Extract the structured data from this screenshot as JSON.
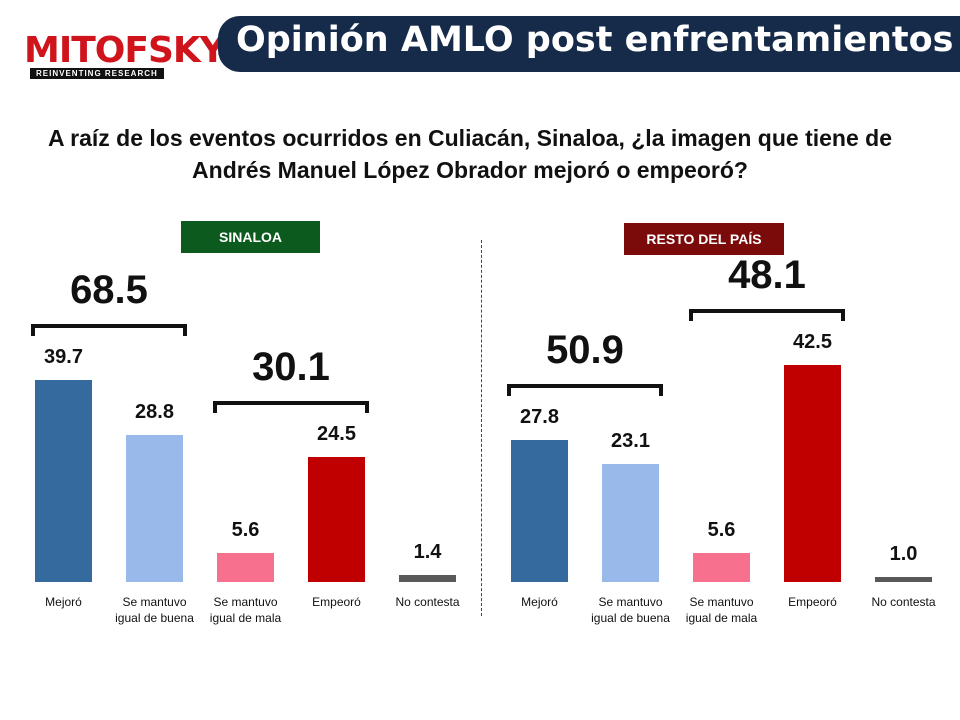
{
  "logo": {
    "name": "MITOFSKY",
    "tagline": "REINVENTING RESEARCH"
  },
  "title": "Opinión AMLO post enfrentamientos",
  "question": "A raíz de los eventos ocurridos en Culiacán, Sinaloa, ¿la imagen que tiene de Andrés Manuel López Obrador mejoró o empeoró?",
  "chart_data": [
    {
      "type": "bar",
      "title": "SINALOA",
      "title_color": "#0d5a1e",
      "categories": [
        "Mejoró",
        "Se mantuvo igual de buena",
        "Se mantuvo igual de mala",
        "Empeoró",
        "No contesta"
      ],
      "values": [
        39.7,
        28.8,
        5.6,
        24.5,
        1.4
      ],
      "colors": [
        "#356a9f",
        "#98b9ea",
        "#f7708d",
        "#c00000",
        "#595959"
      ],
      "brackets": [
        68.5,
        30.1
      ]
    },
    {
      "type": "bar",
      "title": "RESTO DEL PAÍS",
      "title_color": "#7b0a0a",
      "categories": [
        "Mejoró",
        "Se mantuvo igual de buena",
        "Se mantuvo igual de mala",
        "Empeoró",
        "No contesta"
      ],
      "values": [
        27.8,
        23.1,
        5.6,
        42.5,
        1.0
      ],
      "value_labels": [
        "27.8",
        "23.1",
        "5.6",
        "42.5",
        "1.0"
      ],
      "colors": [
        "#356a9f",
        "#98b9ea",
        "#f7708d",
        "#c00000",
        "#595959"
      ],
      "brackets": [
        50.9,
        48.1
      ]
    }
  ]
}
